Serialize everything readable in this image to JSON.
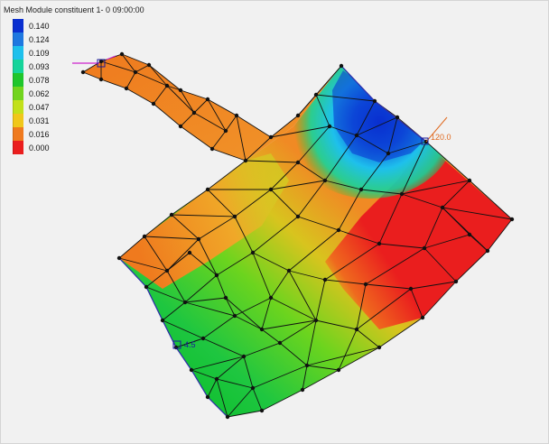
{
  "legend": {
    "title": "Mesh Module constituent 1- 0 09:00:00",
    "items": [
      {
        "label": "0.140",
        "color": "#0a2fd0"
      },
      {
        "label": "0.124",
        "color": "#1f78e0"
      },
      {
        "label": "0.109",
        "color": "#1ec0ec"
      },
      {
        "label": "0.093",
        "color": "#16d49a"
      },
      {
        "label": "0.078",
        "color": "#1fc62c"
      },
      {
        "label": "0.062",
        "color": "#72d41e"
      },
      {
        "label": "0.047",
        "color": "#c2e01a"
      },
      {
        "label": "0.031",
        "color": "#f0c71a"
      },
      {
        "label": "0.016",
        "color": "#ef7a1e"
      },
      {
        "label": "0.000",
        "color": "#ea1e1e"
      }
    ]
  },
  "markers": {
    "right": {
      "label": "120.0",
      "color": "#e06a20"
    },
    "left": {
      "label": "4.5",
      "color": "#1a1a9a"
    },
    "top": {
      "label": "",
      "color": "#cc22cc"
    }
  }
}
